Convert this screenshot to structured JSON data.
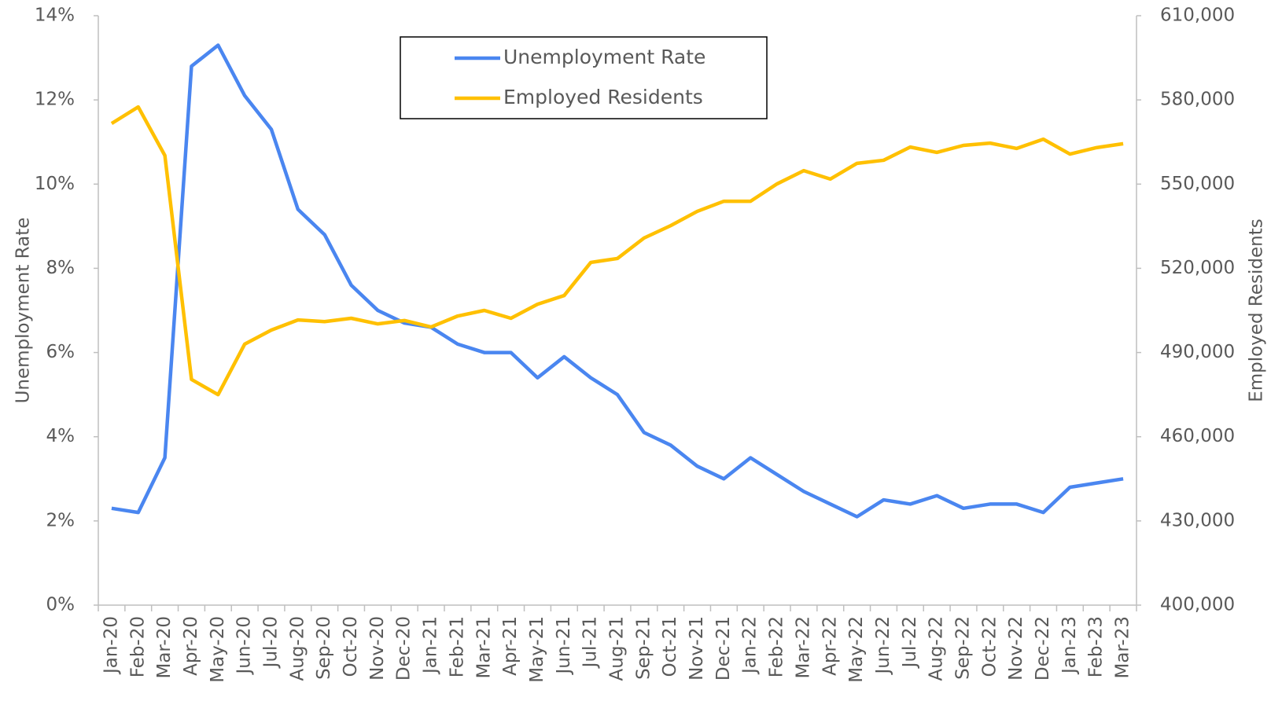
{
  "chart_data": {
    "type": "line",
    "categories": [
      "Jan-20",
      "Feb-20",
      "Mar-20",
      "Apr-20",
      "May-20",
      "Jun-20",
      "Jul-20",
      "Aug-20",
      "Sep-20",
      "Oct-20",
      "Nov-20",
      "Dec-20",
      "Jan-21",
      "Feb-21",
      "Mar-21",
      "Apr-21",
      "May-21",
      "Jun-21",
      "Jul-21",
      "Aug-21",
      "Sep-21",
      "Oct-21",
      "Nov-21",
      "Dec-21",
      "Jan-22",
      "Feb-22",
      "Mar-22",
      "Apr-22",
      "May-22",
      "Jun-22",
      "Jul-22",
      "Aug-22",
      "Sep-22",
      "Oct-22",
      "Nov-22",
      "Dec-22",
      "Jan-23",
      "Feb-23",
      "Mar-23"
    ],
    "series": [
      {
        "name": "Unemployment Rate",
        "color": "#4a86f0",
        "axis": "y",
        "values": [
          2.3,
          2.2,
          3.5,
          12.8,
          13.3,
          12.1,
          11.3,
          9.4,
          8.8,
          7.6,
          7.0,
          6.7,
          6.6,
          6.2,
          6.0,
          6.0,
          5.4,
          5.9,
          5.4,
          5.0,
          4.1,
          3.8,
          3.3,
          3.0,
          3.5,
          3.1,
          2.7,
          2.4,
          2.1,
          2.5,
          2.4,
          2.6,
          2.3,
          2.4,
          2.4,
          2.2,
          2.8,
          2.9,
          3.0
        ]
      },
      {
        "name": "Employed Residents",
        "color": "#ffc000",
        "axis": "y2",
        "values": [
          571600,
          577500,
          560200,
          480400,
          475000,
          493000,
          498000,
          501600,
          501000,
          502200,
          500200,
          501400,
          499100,
          503000,
          505000,
          502200,
          507200,
          510300,
          522100,
          523500,
          530800,
          535200,
          540300,
          543900,
          543900,
          550100,
          554800,
          551800,
          557400,
          558500,
          563200,
          561300,
          563800,
          564600,
          562700,
          566000,
          560700,
          563000,
          564400
        ]
      }
    ],
    "y_label": "Unemployment Rate",
    "y2_label": "Employed Residents",
    "ylim": [
      0,
      14
    ],
    "yticks": [
      {
        "value": 0,
        "label": "0%"
      },
      {
        "value": 2,
        "label": "2%"
      },
      {
        "value": 4,
        "label": "4%"
      },
      {
        "value": 6,
        "label": "6%"
      },
      {
        "value": 8,
        "label": "8%"
      },
      {
        "value": 10,
        "label": "10%"
      },
      {
        "value": 12,
        "label": "12%"
      },
      {
        "value": 14,
        "label": "14%"
      }
    ],
    "y2lim": [
      400000,
      610000
    ],
    "y2ticks": [
      {
        "value": 400000,
        "label": "400,000"
      },
      {
        "value": 430000,
        "label": "430,000"
      },
      {
        "value": 460000,
        "label": "460,000"
      },
      {
        "value": 490000,
        "label": "490,000"
      },
      {
        "value": 520000,
        "label": "520,000"
      },
      {
        "value": 550000,
        "label": "550,000"
      },
      {
        "value": 580000,
        "label": "580,000"
      },
      {
        "value": 610000,
        "label": "610,000"
      }
    ],
    "grid": false,
    "legend": "top"
  }
}
